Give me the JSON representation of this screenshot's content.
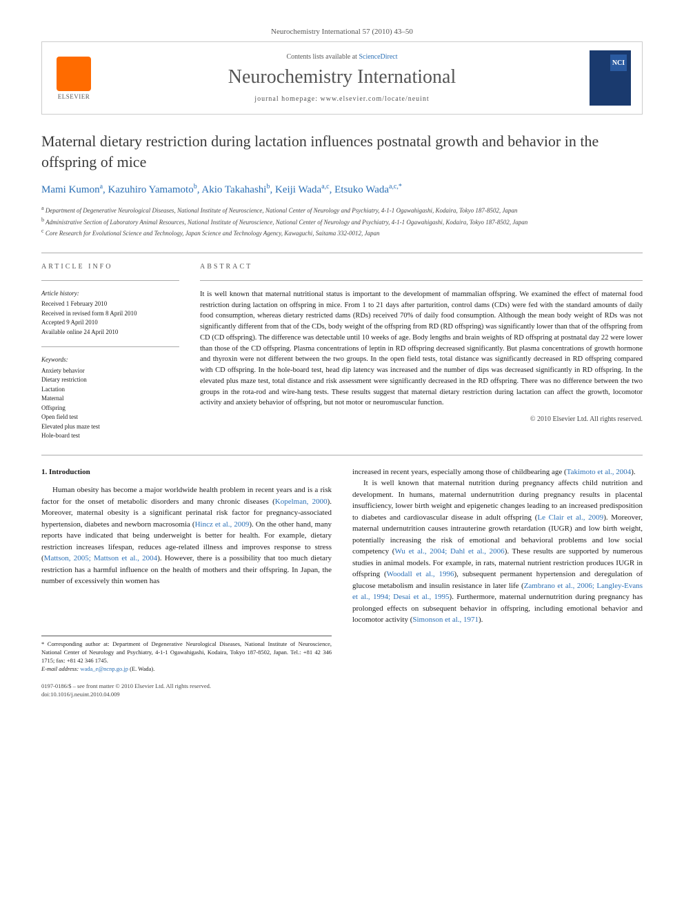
{
  "header": {
    "citation": "Neurochemistry International 57 (2010) 43–50",
    "contents_text": "Contents lists available at ",
    "contents_link": "ScienceDirect",
    "journal_name": "Neurochemistry International",
    "homepage_label": "journal homepage: www.elsevier.com/locate/neuint",
    "publisher_label": "ELSEVIER",
    "cover_badge": "NCI"
  },
  "article": {
    "title": "Maternal dietary restriction during lactation influences postnatal growth and behavior in the offspring of mice",
    "authors": [
      {
        "name": "Mami Kumon",
        "affil": "a"
      },
      {
        "name": "Kazuhiro Yamamoto",
        "affil": "b"
      },
      {
        "name": "Akio Takahashi",
        "affil": "b"
      },
      {
        "name": "Keiji Wada",
        "affil": "a,c"
      },
      {
        "name": "Etsuko Wada",
        "affil": "a,c,*"
      }
    ],
    "affiliations": [
      {
        "label": "a",
        "text": "Department of Degenerative Neurological Diseases, National Institute of Neuroscience, National Center of Neurology and Psychiatry, 4-1-1 Ogawahigashi, Kodaira, Tokyo 187-8502, Japan"
      },
      {
        "label": "b",
        "text": "Administrative Section of Laboratory Animal Resources, National Institute of Neuroscience, National Center of Neurology and Psychiatry, 4-1-1 Ogawahigashi, Kodaira, Tokyo 187-8502, Japan"
      },
      {
        "label": "c",
        "text": "Core Research for Evolutional Science and Technology, Japan Science and Technology Agency, Kawaguchi, Saitama 332-0012, Japan"
      }
    ]
  },
  "info": {
    "article_info_heading": "ARTICLE INFO",
    "history_heading": "Article history:",
    "history": [
      "Received 1 February 2010",
      "Received in revised form 8 April 2010",
      "Accepted 9 April 2010",
      "Available online 24 April 2010"
    ],
    "keywords_heading": "Keywords:",
    "keywords": [
      "Anxiety behavior",
      "Dietary restriction",
      "Lactation",
      "Maternal",
      "Offspring",
      "Open field test",
      "Elevated plus maze test",
      "Hole-board test"
    ],
    "abstract_heading": "ABSTRACT",
    "abstract": "It is well known that maternal nutritional status is important to the development of mammalian offspring. We examined the effect of maternal food restriction during lactation on offspring in mice. From 1 to 21 days after parturition, control dams (CDs) were fed with the standard amounts of daily food consumption, whereas dietary restricted dams (RDs) received 70% of daily food consumption. Although the mean body weight of RDs was not significantly different from that of the CDs, body weight of the offspring from RD (RD offspring) was significantly lower than that of the offspring from CD (CD offspring). The difference was detectable until 10 weeks of age. Body lengths and brain weights of RD offspring at postnatal day 22 were lower than those of the CD offspring. Plasma concentrations of leptin in RD offspring decreased significantly. But plasma concentrations of growth hormone and thyroxin were not different between the two groups. In the open field tests, total distance was significantly decreased in RD offspring compared with CD offspring. In the hole-board test, head dip latency was increased and the number of dips was decreased significantly in RD offspring. In the elevated plus maze test, total distance and risk assessment were significantly decreased in the RD offspring. There was no difference between the two groups in the rota-rod and wire-hang tests. These results suggest that maternal dietary restriction during lactation can affect the growth, locomotor activity and anxiety behavior of offspring, but not motor or neuromuscular function.",
    "copyright": "© 2010 Elsevier Ltd. All rights reserved."
  },
  "body": {
    "intro_heading": "1. Introduction",
    "col1_p1_a": "Human obesity has become a major worldwide health problem in recent years and is a risk factor for the onset of metabolic disorders and many chronic diseases (",
    "col1_cite1": "Kopelman, 2000",
    "col1_p1_b": "). Moreover, maternal obesity is a significant perinatal risk factor for pregnancy-associated hypertension, diabetes and newborn macrosomia (",
    "col1_cite2": "Hincz et al., 2009",
    "col1_p1_c": "). On the other hand, many reports have indicated that being underweight is better for health. For example, dietary restriction increases lifespan, reduces age-related illness and improves response to stress (",
    "col1_cite3": "Mattson, 2005; Mattson et al., 2004",
    "col1_p1_d": "). However, there is a possibility that too much dietary restriction has a harmful influence on the health of mothers and their offspring. In Japan, the number of excessively thin women has",
    "col2_p1_a": "increased in recent years, especially among those of childbearing age (",
    "col2_cite1": "Takimoto et al., 2004",
    "col2_p1_b": ").",
    "col2_p2_a": "It is well known that maternal nutrition during pregnancy affects child nutrition and development. In humans, maternal undernutrition during pregnancy results in placental insufficiency, lower birth weight and epigenetic changes leading to an increased predisposition to diabetes and cardiovascular disease in adult offspring (",
    "col2_cite2": "Le Clair et al., 2009",
    "col2_p2_b": "). Moreover, maternal undernutrition causes intrauterine growth retardation (IUGR) and low birth weight, potentially increasing the risk of emotional and behavioral problems and low social competency (",
    "col2_cite3": "Wu et al., 2004; Dahl et al., 2006",
    "col2_p2_c": "). These results are supported by numerous studies in animal models. For example, in rats, maternal nutrient restriction produces IUGR in offspring (",
    "col2_cite4": "Woodall et al., 1996",
    "col2_p2_d": "), subsequent permanent hypertension and deregulation of glucose metabolism and insulin resistance in later life (",
    "col2_cite5": "Zambrano et al., 2006; Langley-Evans et al., 1994; Desai et al., 1995",
    "col2_p2_e": "). Furthermore, maternal undernutrition during pregnancy has prolonged effects on subsequent behavior in offspring, including emotional behavior and locomotor activity (",
    "col2_cite6": "Simonson et al., 1971",
    "col2_p2_f": ")."
  },
  "footnote": {
    "corresponding": "* Corresponding author at: Department of Degenerative Neurological Diseases, National Institute of Neuroscience, National Center of Neurology and Psychiatry, 4-1-1 Ogawahigashi, Kodaira, Tokyo 187-8502, Japan. Tel.: +81 42 346 1715; fax: +81 42 346 1745.",
    "email_label": "E-mail address: ",
    "email": "wada_e@ncnp.go.jp",
    "email_name": " (E. Wada)."
  },
  "footer": {
    "line1": "0197-0186/$ – see front matter © 2010 Elsevier Ltd. All rights reserved.",
    "line2": "doi:10.1016/j.neuint.2010.04.009"
  },
  "colors": {
    "link": "#2a6fb5",
    "publisher_orange": "#ff6b00",
    "cover_blue": "#1a3a6e",
    "text": "#1a1a1a",
    "muted": "#555555",
    "border": "#cccccc"
  },
  "typography": {
    "title_fontsize": 22,
    "journal_fontsize": 28,
    "body_fontsize": 11,
    "abstract_fontsize": 10.5,
    "info_fontsize": 9,
    "footnote_fontsize": 8.5
  }
}
